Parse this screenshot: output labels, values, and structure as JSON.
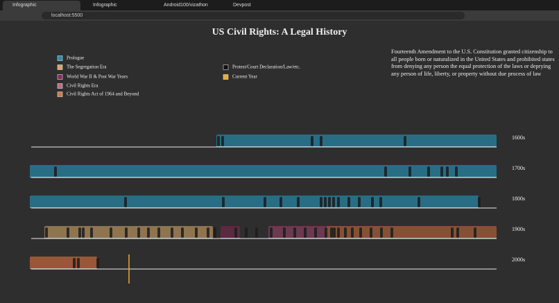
{
  "browser": {
    "tabs": [
      "Infographic",
      "Infographic",
      "Android100/vizathon",
      "Devpost"
    ],
    "url": "localhost:5500"
  },
  "page": {
    "title": "US Civil Rights: A Legal History",
    "legend": [
      "Prologue",
      "The Segregation Era",
      "World War II & Post War Years",
      "Civil Rights Era",
      "Civil Rights Act of 1964 and Beyond",
      "Protest/Court Declaration/Law/etc.",
      "Current Year"
    ],
    "description": "Fourteenth Amendment to the U.S. Constitution granted citizenship to all people born or naturalized in the United States and prohibited states from denying any person the equal protection of the laws or deprying any person of life, liberty, or property without due process of law",
    "rows": [
      "1600s",
      "1700s",
      "1800s",
      "1900s",
      "2000s"
    ]
  }
}
